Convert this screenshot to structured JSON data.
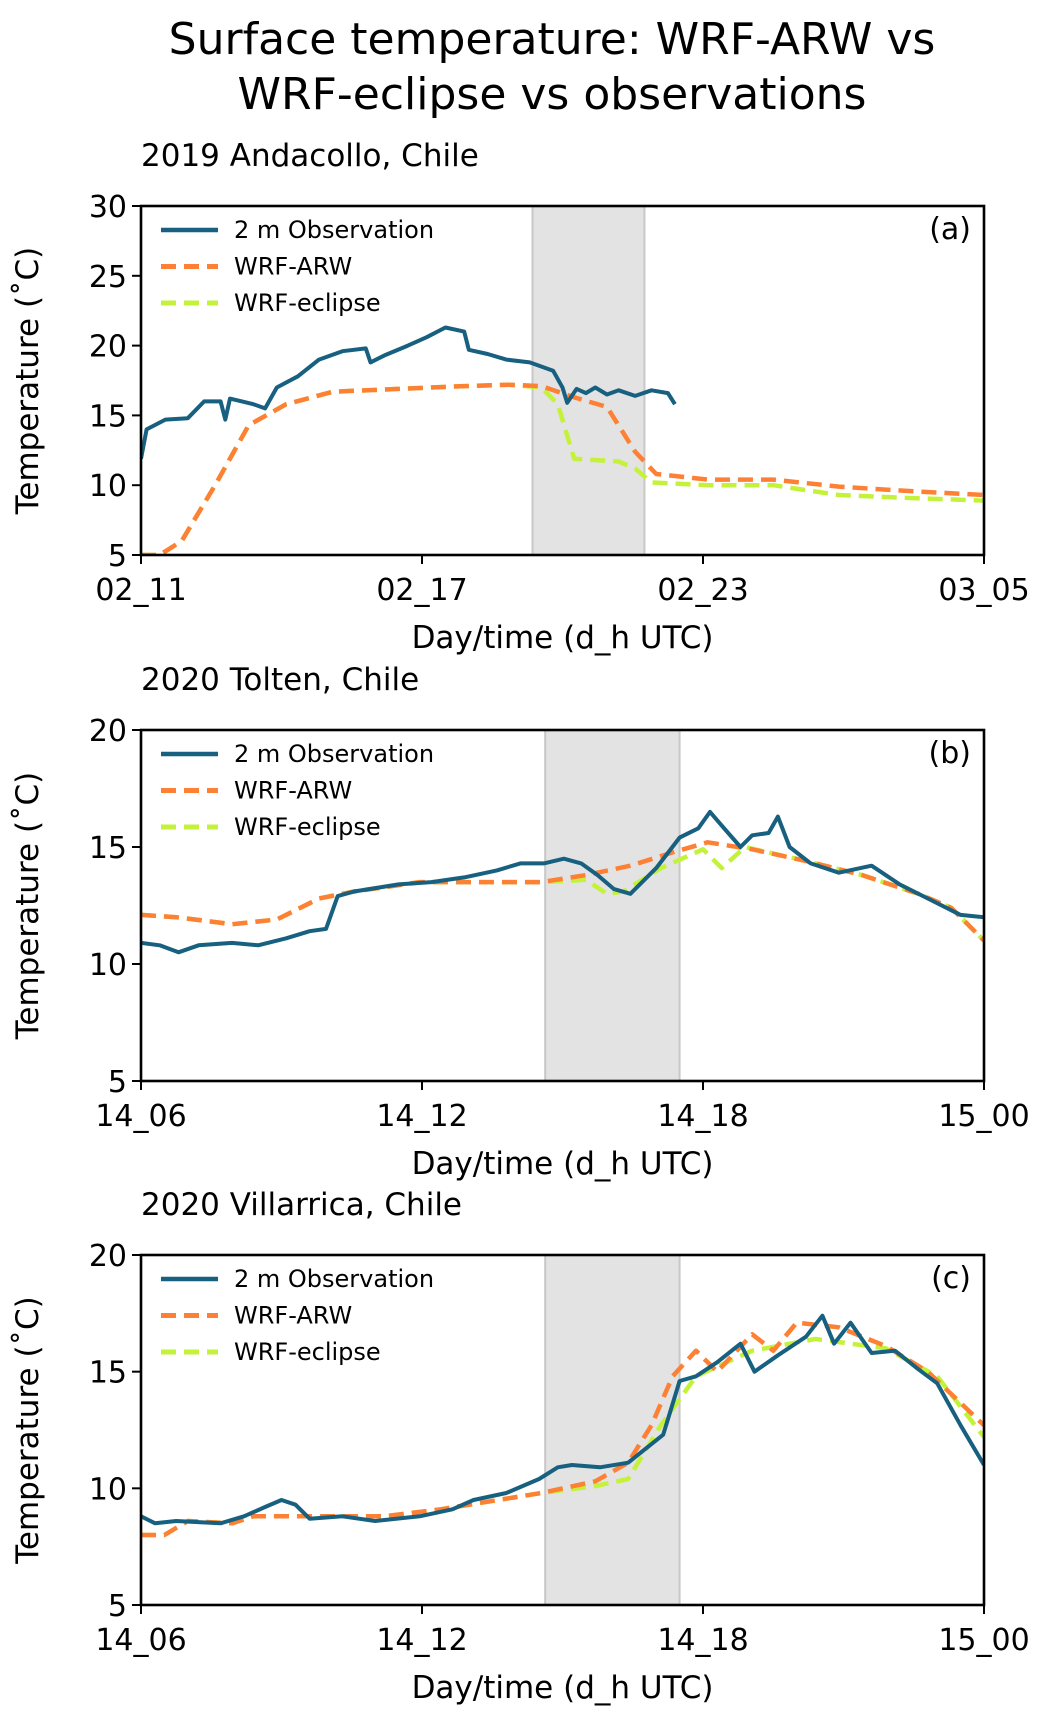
{
  "title_lines": [
    "Surface temperature: WRF-ARW vs",
    "WRF-eclipse vs observations"
  ],
  "colors": {
    "observation": "#17607f",
    "wrf_arw": "#fd8034",
    "wrf_eclipse": "#c4f23a",
    "eclipse_shade": "#e3e3e3"
  },
  "chart_data": [
    {
      "type": "line",
      "title": "2019 Andacollo, Chile",
      "panel_label": "(a)",
      "xlabel": "Day/time (d_h UTC)",
      "ylabel": "Temperature (˚C)",
      "x_units": "tick index x6 (ticks equally spaced)",
      "xlim": [
        0,
        18
      ],
      "ylim": [
        5,
        30
      ],
      "xticks": [
        0,
        6,
        12,
        18
      ],
      "xtick_labels": [
        "02_11",
        "02_17",
        "02_23",
        "03_05"
      ],
      "yticks": [
        5,
        10,
        15,
        20,
        25,
        30
      ],
      "ytick_labels": [
        "5",
        "10",
        "15",
        "20",
        "25",
        "30"
      ],
      "eclipse_span": [
        8.36,
        10.75
      ],
      "legend": [
        "2 m Observation",
        "WRF-ARW",
        "WRF-eclipse"
      ],
      "legend_position": "top-left",
      "series": [
        {
          "name": "2 m Observation",
          "style": "solid",
          "x": [
            0,
            0.12,
            0.52,
            1,
            1.35,
            1.7,
            1.8,
            1.9,
            2.4,
            2.65,
            2.9,
            3.35,
            3.8,
            4.3,
            4.8,
            4.9,
            5.2,
            5.7,
            6.1,
            6.5,
            6.9,
            7,
            7.4,
            7.8,
            8.3,
            8.8,
            9,
            9.1,
            9.3,
            9.5,
            9.7,
            9.95,
            10.2,
            10.55,
            10.9,
            11.25,
            11.4
          ],
          "y": [
            11.9,
            14,
            14.7,
            14.8,
            16,
            16,
            14.7,
            16.2,
            15.8,
            15.5,
            17,
            17.8,
            19,
            19.6,
            19.8,
            18.8,
            19.3,
            20,
            20.6,
            21.3,
            21,
            19.7,
            19.4,
            19,
            18.8,
            18.2,
            17,
            15.9,
            16.9,
            16.6,
            17,
            16.5,
            16.8,
            16.4,
            16.8,
            16.6,
            15.8
          ]
        },
        {
          "name": "WRF-ARW",
          "style": "dashed",
          "x": [
            0,
            0.4,
            0.87,
            1.6,
            2.3,
            3.1,
            4.1,
            5.5,
            6.9,
            7.85,
            8.55,
            9.25,
            9.95,
            10.55,
            11,
            12.1,
            13.5,
            14.9,
            16.3,
            18
          ],
          "y": [
            5,
            5,
            6,
            10.1,
            14.3,
            15.8,
            16.7,
            16.9,
            17.1,
            17.2,
            17.1,
            16.3,
            15.6,
            12.4,
            10.8,
            10.4,
            10.4,
            9.9,
            9.6,
            9.3
          ]
        },
        {
          "name": "WRF-eclipse",
          "style": "dashed",
          "x": [
            0,
            0.4,
            0.87,
            1.6,
            2.3,
            3.1,
            4.1,
            5.5,
            6.9,
            7.85,
            8.55,
            8.9,
            9.25,
            10.2,
            10.55,
            10.9,
            12.1,
            13.5,
            14.9,
            16.3,
            18
          ],
          "y": [
            5,
            5,
            6,
            10.1,
            14.3,
            15.8,
            16.7,
            16.9,
            17.1,
            17.2,
            17,
            15.8,
            11.9,
            11.7,
            11.2,
            10.2,
            10,
            10,
            9.3,
            9.1,
            8.9
          ]
        }
      ]
    },
    {
      "type": "line",
      "title": "2020 Tolten, Chile",
      "panel_label": "(b)",
      "xlabel": "Day/time (d_h UTC)",
      "ylabel": "Temperature (˚C)",
      "x_units": "hours since 14_06 UTC",
      "xlim": [
        0,
        18
      ],
      "ylim": [
        5,
        20
      ],
      "xticks": [
        0,
        6,
        12,
        18
      ],
      "xtick_labels": [
        "14_06",
        "14_12",
        "14_18",
        "15_00"
      ],
      "yticks": [
        5,
        10,
        15,
        20
      ],
      "ytick_labels": [
        "5",
        "10",
        "15",
        "20"
      ],
      "eclipse_span": [
        8.63,
        11.5
      ],
      "legend": [
        "2 m Observation",
        "WRF-ARW",
        "WRF-eclipse"
      ],
      "legend_position": "top-left",
      "series": [
        {
          "name": "2 m Observation",
          "style": "solid",
          "x": [
            0,
            0.4,
            0.8,
            1.23,
            1.94,
            2.5,
            3.1,
            3.6,
            3.95,
            4.2,
            4.55,
            5.5,
            6.2,
            6.9,
            7.6,
            8.1,
            8.6,
            9.03,
            9.4,
            9.75,
            10.1,
            10.45,
            11,
            11.5,
            11.9,
            12.15,
            12.45,
            12.8,
            13.05,
            13.4,
            13.6,
            13.85,
            14.3,
            14.9,
            15.6,
            16.2,
            16.8,
            17.5,
            18
          ],
          "y": [
            10.9,
            10.8,
            10.5,
            10.8,
            10.9,
            10.8,
            11.1,
            11.4,
            11.5,
            12.9,
            13.1,
            13.4,
            13.5,
            13.7,
            14,
            14.3,
            14.3,
            14.5,
            14.3,
            13.8,
            13.2,
            13,
            14.1,
            15.4,
            15.8,
            16.5,
            15.8,
            15,
            15.5,
            15.6,
            16.3,
            15,
            14.3,
            13.9,
            14.2,
            13.4,
            12.8,
            12.1,
            12
          ]
        },
        {
          "name": "WRF-ARW",
          "style": "dashed",
          "x": [
            0,
            0.75,
            1.95,
            2.9,
            3.8,
            4.55,
            5.95,
            7.4,
            8.55,
            9.5,
            10.45,
            11.4,
            12.1,
            13.05,
            14.2,
            15.4,
            16.6,
            17.3,
            18
          ],
          "y": [
            12.1,
            12,
            11.7,
            11.9,
            12.8,
            13.1,
            13.5,
            13.5,
            13.5,
            13.8,
            14.2,
            14.8,
            15.2,
            14.9,
            14.4,
            13.8,
            13,
            12.4,
            11
          ]
        },
        {
          "name": "WRF-eclipse",
          "style": "dashed",
          "x": [
            0,
            0.75,
            1.95,
            2.9,
            3.8,
            4.55,
            5.95,
            7.4,
            8.55,
            9.5,
            9.95,
            10.3,
            11.1,
            12,
            12.4,
            12.9,
            14.2,
            15.4,
            16.6,
            17.3,
            18
          ],
          "y": [
            12.1,
            12,
            11.7,
            11.9,
            12.8,
            13.1,
            13.5,
            13.5,
            13.5,
            13.6,
            13,
            13.1,
            14.1,
            14.9,
            14.1,
            15,
            14.4,
            13.8,
            13,
            12.4,
            11
          ]
        }
      ]
    },
    {
      "type": "line",
      "title": "2020 Villarrica, Chile",
      "panel_label": "(c)",
      "xlabel": "Day/time (d_h UTC)",
      "ylabel": "Temperature (˚C)",
      "x_units": "hours since 14_06 UTC",
      "xlim": [
        0,
        18
      ],
      "ylim": [
        5,
        20
      ],
      "xticks": [
        0,
        6,
        12,
        18
      ],
      "xtick_labels": [
        "14_06",
        "14_12",
        "14_18",
        "15_00"
      ],
      "yticks": [
        5,
        10,
        15,
        20
      ],
      "ytick_labels": [
        "5",
        "10",
        "15",
        "20"
      ],
      "eclipse_span": [
        8.63,
        11.5
      ],
      "legend": [
        "2 m Observation",
        "WRF-ARW",
        "WRF-eclipse"
      ],
      "legend_position": "top-left",
      "series": [
        {
          "name": "2 m Observation",
          "style": "solid",
          "x": [
            0,
            0.3,
            0.75,
            1.7,
            2.2,
            2.65,
            3,
            3.3,
            3.6,
            4.3,
            5,
            5.95,
            6.65,
            7.1,
            7.8,
            8.5,
            8.9,
            9.2,
            9.8,
            10.4,
            11.15,
            11.5,
            11.85,
            12.3,
            12.8,
            13.1,
            13.6,
            14.2,
            14.55,
            14.8,
            15.15,
            15.6,
            16.1,
            16.6,
            17,
            17.5,
            18
          ],
          "y": [
            8.8,
            8.5,
            8.6,
            8.5,
            8.8,
            9.2,
            9.5,
            9.3,
            8.7,
            8.8,
            8.6,
            8.8,
            9.1,
            9.5,
            9.8,
            10.4,
            10.9,
            11,
            10.9,
            11.1,
            12.3,
            14.6,
            14.8,
            15.4,
            16.2,
            15,
            15.7,
            16.5,
            17.4,
            16.2,
            17.1,
            15.8,
            15.9,
            15.1,
            14.5,
            12.7,
            11
          ]
        },
        {
          "name": "WRF-ARW",
          "style": "dashed",
          "x": [
            0,
            0.5,
            1,
            1.95,
            2.4,
            4.1,
            5.2,
            6.4,
            8.55,
            9.7,
            10.4,
            10.9,
            11.35,
            11.85,
            12.3,
            13.05,
            13.5,
            14,
            14.9,
            15.9,
            16.8,
            18
          ],
          "y": [
            8,
            8,
            8.6,
            8.5,
            8.8,
            8.8,
            8.8,
            9.1,
            9.8,
            10.3,
            11.1,
            12.7,
            14.8,
            15.9,
            15,
            16.6,
            15.9,
            17.1,
            16.9,
            16.1,
            15,
            12.7
          ]
        },
        {
          "name": "WRF-eclipse",
          "style": "dashed",
          "x": [
            0,
            0.5,
            1,
            1.95,
            2.4,
            4.1,
            5.2,
            6.4,
            8.55,
            9.7,
            10.4,
            11.1,
            11.85,
            13.05,
            14.4,
            15.9,
            17,
            18
          ],
          "y": [
            8,
            8,
            8.6,
            8.5,
            8.8,
            8.8,
            8.8,
            9.1,
            9.8,
            10.1,
            10.4,
            12.7,
            14.8,
            15.9,
            16.4,
            16,
            14.8,
            12.2
          ]
        }
      ]
    }
  ]
}
